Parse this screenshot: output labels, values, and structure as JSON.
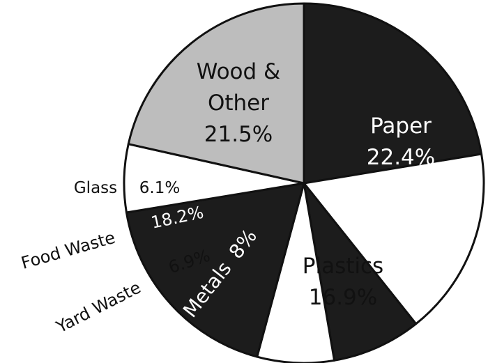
{
  "chart_data": {
    "type": "pie",
    "title": "",
    "legend": "none",
    "slices": [
      {
        "label": "Paper",
        "value": 22.4,
        "value_label": "22.4%",
        "color": "#1c1c1c",
        "text_color": "#ffffff"
      },
      {
        "label": "Plastics",
        "value": 16.9,
        "value_label": "16.9%",
        "color": "#ffffff",
        "text_color": "#111111"
      },
      {
        "label": "Metals",
        "value": 8,
        "value_label": "8%",
        "color": "#1c1c1c",
        "text_color": "#ffffff"
      },
      {
        "label": "Yard Waste",
        "value": 6.9,
        "value_label": "6.9%",
        "color": "#ffffff",
        "text_color": "#111111"
      },
      {
        "label": "Food Waste",
        "value": 18.2,
        "value_label": "18.2%",
        "color": "#1c1c1c",
        "text_color": "#ffffff"
      },
      {
        "label": "Glass",
        "value": 6.1,
        "value_label": "6.1%",
        "color": "#ffffff",
        "text_color": "#111111"
      },
      {
        "label": "Wood & Other",
        "label_lines": [
          "Wood &",
          "Other"
        ],
        "value": 21.5,
        "value_label": "21.5%",
        "color": "#bdbdbd",
        "text_color": "#111111"
      }
    ]
  }
}
